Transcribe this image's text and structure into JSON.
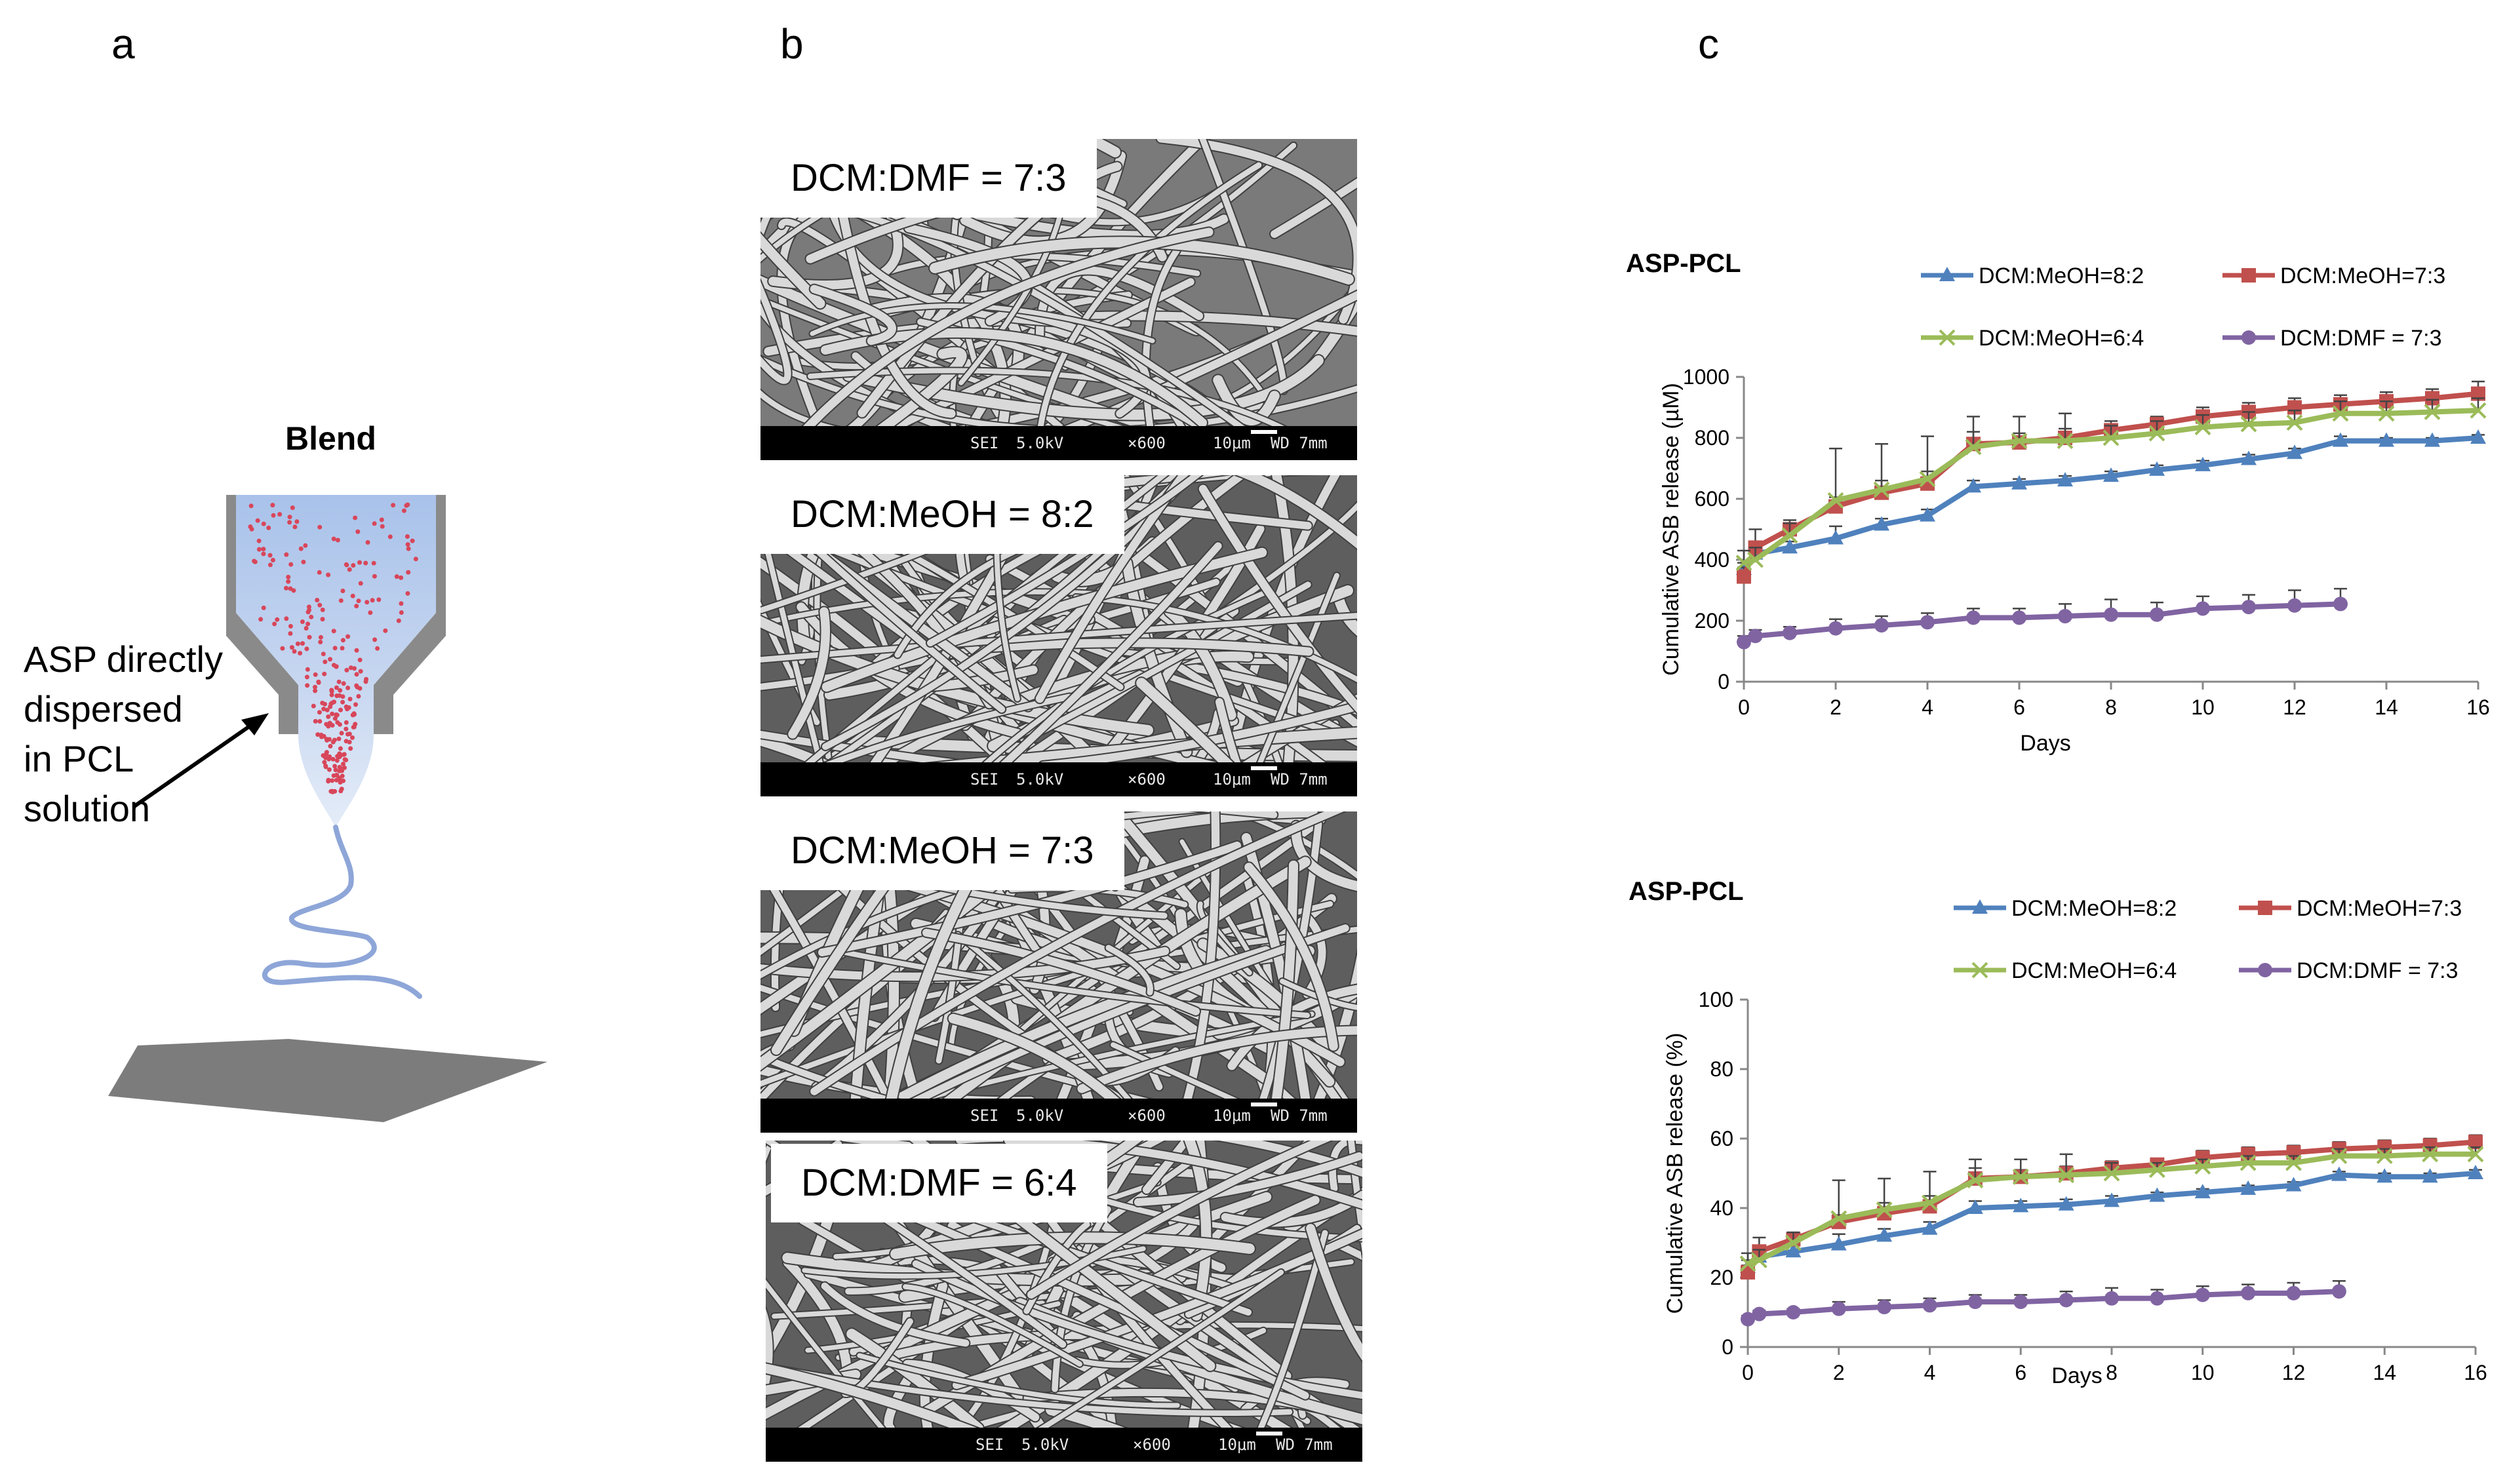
{
  "panels": {
    "a": {
      "letter": "a",
      "title": "Blend",
      "annotation": [
        "ASP directly",
        "dispersed",
        "in PCL",
        "solution"
      ]
    },
    "b": {
      "letter": "b",
      "images": [
        {
          "label": "DCM:DMF = 7:3",
          "sei": "SEI",
          "kv": "5.0kV",
          "mag": "×600",
          "scale": "10μm",
          "wd": "WD 7mm"
        },
        {
          "label": "DCM:MeOH = 8:2",
          "sei": "SEI",
          "kv": "5.0kV",
          "mag": "×600",
          "scale": "10μm",
          "wd": "WD 7mm"
        },
        {
          "label": "DCM:MeOH = 7:3",
          "sei": "SEI",
          "kv": "5.0kV",
          "mag": "×600",
          "scale": "10μm",
          "wd": "WD 7mm"
        },
        {
          "label": "DCM:DMF = 6:4",
          "sei": "SEI",
          "kv": "5.0kV",
          "mag": "×600",
          "scale": "10μm",
          "wd": "WD 7mm"
        }
      ]
    },
    "c": {
      "letter": "c"
    }
  },
  "colors": {
    "blue": "#4F81BD",
    "red": "#C0504D",
    "green": "#9BBB59",
    "purple": "#8064A2"
  },
  "chart_data": [
    {
      "type": "line",
      "title": "ASP-PCL",
      "xlabel": "Days",
      "ylabel": "Cumulative ASB release (µM)",
      "xlim": [
        0,
        16
      ],
      "ylim": [
        0,
        1000
      ],
      "xticks": [
        0,
        2,
        4,
        6,
        8,
        10,
        12,
        14,
        16
      ],
      "yticks": [
        0,
        200,
        400,
        600,
        800,
        1000
      ],
      "grid": false,
      "legend": "top",
      "series": [
        {
          "name": "DCM:MeOH=8:2",
          "color": "#4F81BD",
          "marker": "triangle",
          "x": [
            0,
            0.25,
            1,
            2,
            3,
            4,
            5,
            6,
            7,
            8,
            9,
            10,
            11,
            12,
            13,
            14,
            15,
            16
          ],
          "y": [
            370,
            420,
            440,
            470,
            515,
            545,
            640,
            650,
            660,
            675,
            695,
            710,
            730,
            750,
            790,
            790,
            790,
            800
          ],
          "err": [
            20,
            20,
            20,
            40,
            20,
            20,
            20,
            15,
            15,
            15,
            15,
            15,
            15,
            15,
            15,
            10,
            10,
            10
          ]
        },
        {
          "name": "DCM:MeOH=7:3",
          "color": "#C0504D",
          "marker": "square",
          "x": [
            0,
            0.25,
            1,
            2,
            3,
            4,
            5,
            6,
            7,
            8,
            9,
            10,
            11,
            12,
            13,
            14,
            15,
            16
          ],
          "y": [
            345,
            440,
            500,
            575,
            620,
            650,
            780,
            785,
            800,
            825,
            845,
            870,
            885,
            900,
            910,
            920,
            930,
            945
          ],
          "err": [
            30,
            60,
            30,
            30,
            40,
            40,
            40,
            30,
            30,
            30,
            25,
            30,
            30,
            30,
            30,
            30,
            30,
            40
          ]
        },
        {
          "name": "DCM:MeOH=6:4",
          "color": "#9BBB59",
          "marker": "x",
          "x": [
            0,
            0.25,
            1,
            2,
            3,
            4,
            5,
            6,
            7,
            8,
            9,
            10,
            11,
            12,
            13,
            14,
            15,
            16
          ],
          "y": [
            390,
            400,
            480,
            595,
            630,
            665,
            770,
            790,
            790,
            800,
            815,
            835,
            845,
            850,
            880,
            880,
            885,
            890
          ],
          "err": [
            40,
            40,
            40,
            170,
            150,
            140,
            100,
            80,
            90,
            40,
            40,
            40,
            40,
            40,
            40,
            40,
            40,
            40
          ]
        },
        {
          "name": "DCM:DMF = 7:3",
          "color": "#8064A2",
          "marker": "circle",
          "x": [
            0,
            0.25,
            1,
            2,
            3,
            4,
            5,
            6,
            7,
            8,
            9,
            10,
            11,
            12,
            13
          ],
          "y": [
            130,
            150,
            160,
            175,
            185,
            195,
            210,
            210,
            215,
            220,
            220,
            240,
            245,
            250,
            255
          ],
          "err": [
            20,
            20,
            20,
            30,
            30,
            30,
            30,
            30,
            40,
            50,
            40,
            40,
            40,
            50,
            50
          ]
        }
      ]
    },
    {
      "type": "line",
      "title": "ASP-PCL",
      "xlabel": "Days",
      "ylabel": "Cumulative ASB release (%)",
      "xlim": [
        0,
        16
      ],
      "ylim": [
        0,
        100
      ],
      "xticks": [
        0,
        2,
        4,
        6,
        8,
        10,
        12,
        14,
        16
      ],
      "yticks": [
        0,
        20,
        40,
        60,
        80,
        100
      ],
      "grid": false,
      "legend": "top",
      "series": [
        {
          "name": "DCM:MeOH=8:2",
          "color": "#4F81BD",
          "marker": "triangle",
          "x": [
            0,
            0.25,
            1,
            2,
            3,
            4,
            5,
            6,
            7,
            8,
            9,
            10,
            11,
            12,
            13,
            14,
            15,
            16
          ],
          "y": [
            23,
            26,
            27.5,
            29.5,
            32,
            34,
            40,
            40.5,
            41,
            42,
            43.5,
            44.5,
            45.5,
            46.5,
            49.5,
            49,
            49,
            50
          ],
          "err": [
            2,
            2,
            2,
            3,
            2,
            2,
            2,
            1.5,
            1.5,
            1.5,
            1,
            1,
            1,
            1,
            1,
            1,
            1,
            1
          ]
        },
        {
          "name": "DCM:MeOH=7:3",
          "color": "#C0504D",
          "marker": "square",
          "x": [
            0,
            0.25,
            1,
            2,
            3,
            4,
            5,
            6,
            7,
            8,
            9,
            10,
            11,
            12,
            13,
            14,
            15,
            16
          ],
          "y": [
            21.5,
            27.5,
            31,
            36,
            38.5,
            40.5,
            48.5,
            49,
            50,
            51.5,
            52.5,
            54.5,
            55.5,
            56,
            57,
            57.5,
            58,
            59
          ],
          "err": [
            2,
            4,
            2,
            2,
            3,
            3,
            3,
            2,
            2,
            2,
            1.5,
            2,
            2,
            2,
            2,
            2,
            2,
            2
          ]
        },
        {
          "name": "DCM:MeOH=6:4",
          "color": "#9BBB59",
          "marker": "x",
          "x": [
            0,
            0.25,
            1,
            2,
            3,
            4,
            5,
            6,
            7,
            8,
            9,
            10,
            11,
            12,
            13,
            14,
            15,
            16
          ],
          "y": [
            24,
            25,
            30,
            37,
            39.5,
            41.5,
            48,
            49,
            49.5,
            50,
            51,
            52,
            53,
            53,
            55,
            55,
            55.5,
            55.5
          ],
          "err": [
            3,
            3,
            3,
            11,
            9,
            9,
            6,
            5,
            6,
            3,
            2,
            2,
            2,
            2,
            2,
            2,
            2,
            2
          ]
        },
        {
          "name": "DCM:DMF = 7:3",
          "color": "#8064A2",
          "marker": "circle",
          "x": [
            0,
            0.25,
            1,
            2,
            3,
            4,
            5,
            6,
            7,
            8,
            9,
            10,
            11,
            12,
            13
          ],
          "y": [
            8,
            9.5,
            10,
            11,
            11.5,
            12,
            13,
            13,
            13.5,
            14,
            14,
            15,
            15.5,
            15.5,
            16
          ],
          "err": [
            1,
            1,
            1,
            2,
            2,
            2,
            2,
            2,
            2.5,
            3,
            2.5,
            2.5,
            2.5,
            3,
            3
          ]
        }
      ]
    }
  ]
}
